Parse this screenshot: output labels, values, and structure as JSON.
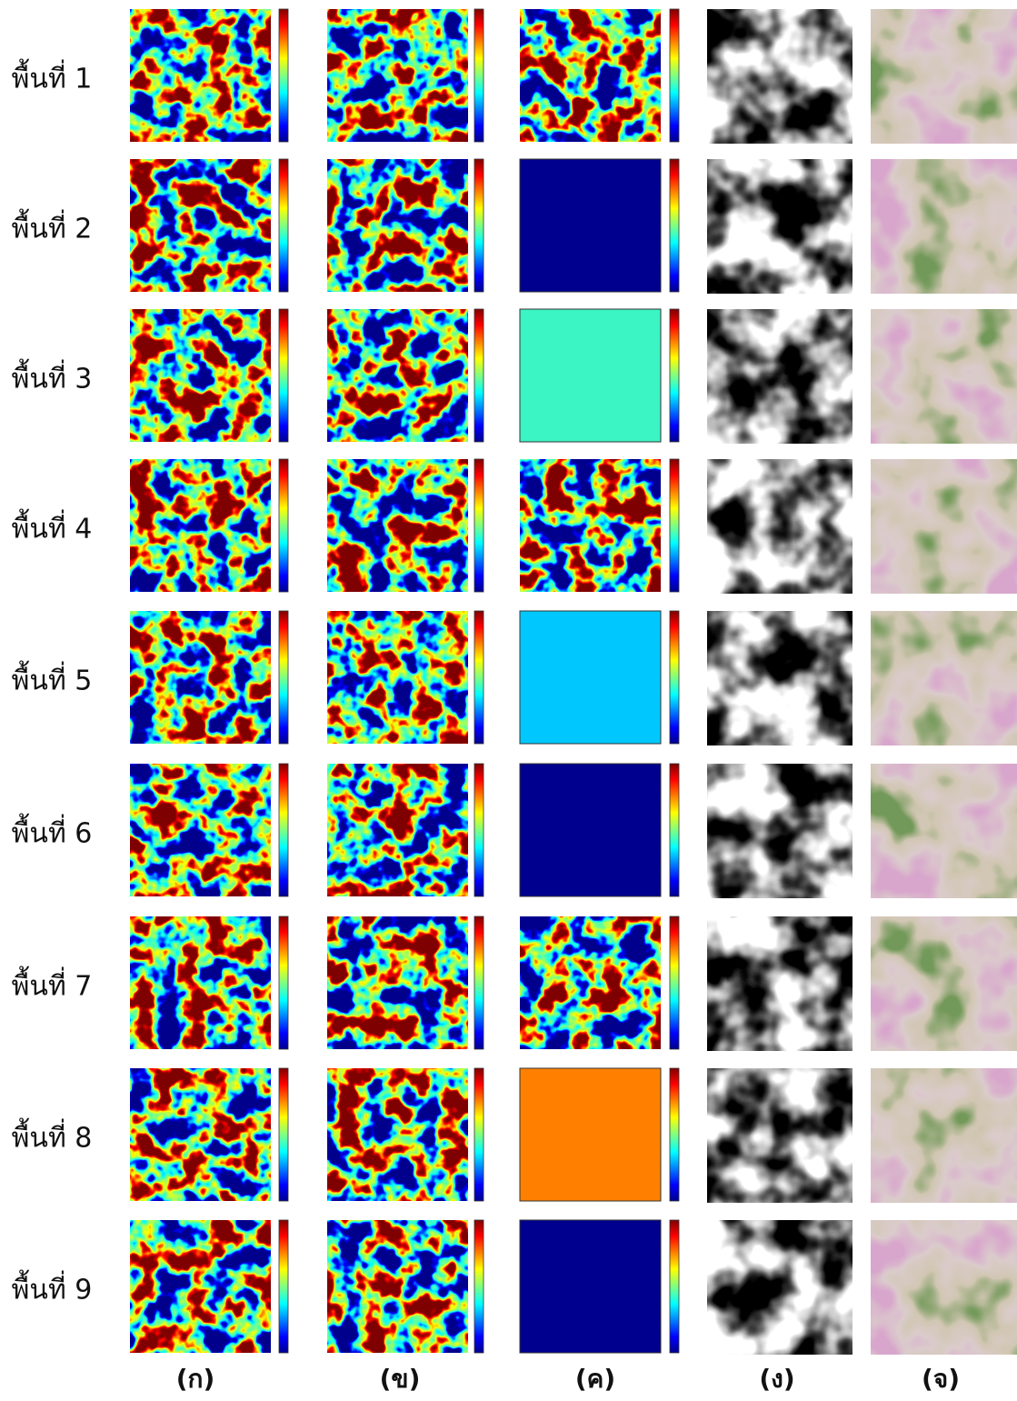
{
  "row_labels": [
    "พื้นที่ 1",
    "พื้นที่ 2",
    "พื้นที่ 3",
    "พื้นที่ 4",
    "พื้นที่ 5",
    "พื้นที่ 6",
    "พื้นที่ 7",
    "พื้นที่ 8",
    "พื้นที่ 9"
  ],
  "column_labels": [
    "(ก)",
    "(ข)",
    "(ค)",
    "(ง)",
    "(จ)"
  ]
}
